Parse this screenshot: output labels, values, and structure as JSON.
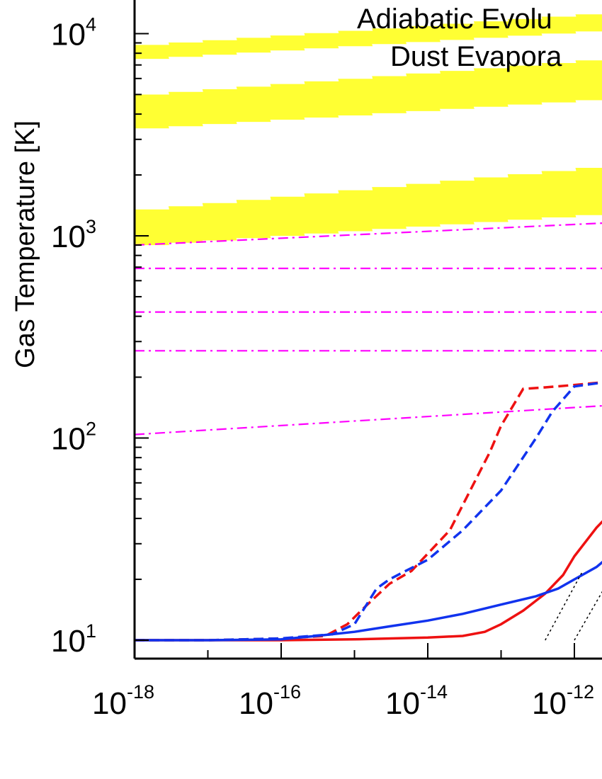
{
  "chart_data": {
    "type": "line",
    "title": "",
    "xlabel": "",
    "ylabel": "Gas Temperature [K]",
    "xscale": "log",
    "yscale": "log",
    "xlim": [
      1e-18,
      3e-12
    ],
    "ylim": [
      8.4,
      20000
    ],
    "x_tick_labels": [
      {
        "base": "10",
        "exp": "-18",
        "value": 1e-18
      },
      {
        "base": "10",
        "exp": "-16",
        "value": 1e-16
      },
      {
        "base": "10",
        "exp": "-14",
        "value": 1e-14
      },
      {
        "base": "10",
        "exp": "-12",
        "value": 1e-12
      }
    ],
    "y_tick_labels": [
      {
        "base": "10",
        "exp": "1",
        "value": 10
      },
      {
        "base": "10",
        "exp": "2",
        "value": 100
      },
      {
        "base": "10",
        "exp": "3",
        "value": 1000
      },
      {
        "base": "10",
        "exp": "4",
        "value": 10000
      }
    ],
    "legend": {
      "placement": "top-right",
      "entries": [
        "Adiabatic Evolu",
        "Dust Evapora"
      ]
    },
    "bands": [
      {
        "color": "#ffff33",
        "x": [
          1e-18,
          3e-12
        ],
        "lower": [
          7500,
          10500
        ],
        "upper": [
          8800,
          12800
        ]
      },
      {
        "color": "#ffff33",
        "x": [
          1e-18,
          3e-12
        ],
        "lower": [
          3400,
          4800
        ],
        "upper": [
          5000,
          7600
        ]
      },
      {
        "color": "#ffff33",
        "x": [
          1e-18,
          3e-12
        ],
        "lower": [
          900,
          1300
        ],
        "upper": [
          1350,
          2250
        ]
      }
    ],
    "series": [
      {
        "color": "#ff00ff",
        "style": "dashdot",
        "x": [
          1e-18,
          3e-12
        ],
        "y": [
          900,
          1160
        ]
      },
      {
        "color": "#ff00ff",
        "style": "dashdot",
        "x": [
          1e-18,
          3e-12
        ],
        "y": [
          690,
          690
        ]
      },
      {
        "color": "#ff00ff",
        "style": "dashdot",
        "x": [
          1e-18,
          3e-12
        ],
        "y": [
          420,
          420
        ]
      },
      {
        "color": "#ff00ff",
        "style": "dashdot",
        "x": [
          1e-18,
          3e-12
        ],
        "y": [
          270,
          270
        ]
      },
      {
        "color": "#ff00ff",
        "style": "dashdot",
        "x": [
          1e-18,
          3e-12
        ],
        "y": [
          104,
          145
        ]
      },
      {
        "color": "#ee1111",
        "style": "dashed",
        "x": [
          1e-18,
          1e-17,
          1e-16,
          4e-16,
          8e-16,
          1.5e-15,
          3e-15,
          6e-15,
          2e-14,
          7e-14,
          1e-13,
          2e-13,
          4e-13,
          1e-12,
          3e-12
        ],
        "y": [
          10,
          10,
          10.2,
          10.5,
          12,
          15,
          19,
          22,
          35,
          85,
          115,
          175,
          178,
          183,
          190
        ]
      },
      {
        "color": "#1133ee",
        "style": "dashed",
        "x": [
          1e-18,
          1e-17,
          1e-16,
          5e-16,
          1e-15,
          2e-15,
          3e-15,
          5e-15,
          1e-14,
          3e-14,
          1e-13,
          3e-13,
          5e-13,
          1e-12,
          3e-12
        ],
        "y": [
          10,
          10,
          10.2,
          10.7,
          12,
          18,
          20,
          22,
          25,
          35,
          55,
          100,
          135,
          180,
          190
        ]
      },
      {
        "color": "#ee1111",
        "style": "solid",
        "x": [
          1e-18,
          1e-17,
          1e-16,
          1e-15,
          1e-14,
          3e-14,
          6e-14,
          1e-13,
          2e-13,
          4e-13,
          7e-13,
          1e-12,
          2e-12,
          3e-12
        ],
        "y": [
          10,
          10,
          10,
          10.1,
          10.3,
          10.5,
          11,
          12,
          14,
          17,
          21,
          26,
          36,
          42
        ]
      },
      {
        "color": "#1133ee",
        "style": "solid",
        "x": [
          1e-18,
          1e-17,
          1e-16,
          3e-16,
          1e-15,
          3e-15,
          1e-14,
          3e-14,
          1e-13,
          3e-13,
          6e-13,
          1e-12,
          2e-12,
          3e-12
        ],
        "y": [
          10,
          10,
          10.1,
          10.5,
          11,
          11.7,
          12.5,
          13.5,
          15,
          16.5,
          18,
          20,
          23,
          26
        ]
      },
      {
        "color": "#000000",
        "style": "dotted",
        "x": [
          4e-13,
          1.3e-12
        ],
        "y": [
          10,
          22
        ]
      },
      {
        "color": "#000000",
        "style": "dotted",
        "x": [
          1e-12,
          3e-12
        ],
        "y": [
          10,
          20
        ]
      }
    ]
  }
}
